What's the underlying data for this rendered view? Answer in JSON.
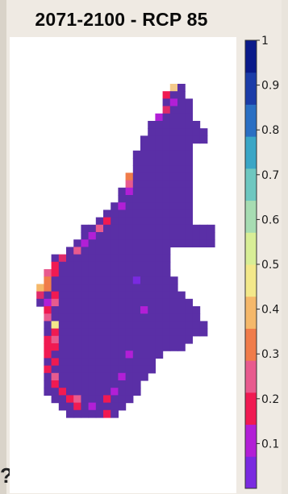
{
  "chart_data": {
    "type": "heatmap",
    "title": "2071-2100 - RCP 85",
    "colorbar": {
      "min": 0,
      "max": 1,
      "ticks": [
        0.1,
        0.2,
        0.3,
        0.4,
        0.5,
        0.6,
        0.7,
        0.8,
        0.9,
        1
      ],
      "tick_labels": [
        "0.1",
        "0.2",
        "0.3",
        "0.4",
        "0.5",
        "0.6",
        "0.7",
        "0.8",
        "0.9",
        "1"
      ],
      "colors": [
        "#7a2ae0",
        "#b21fd6",
        "#f01a52",
        "#e85a8e",
        "#f07c4a",
        "#f5b86a",
        "#f3e88a",
        "#d8ee96",
        "#a7dcb2",
        "#6ec7c0",
        "#3aa6c6",
        "#2a6fc3",
        "#1b3ca8",
        "#0a1a8a"
      ]
    },
    "field_color": "#5a2fa6"
  }
}
